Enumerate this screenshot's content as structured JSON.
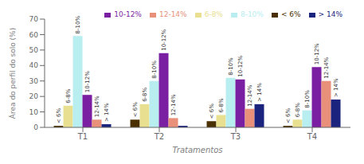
{
  "chart_data": {
    "type": "bar",
    "title": "",
    "xlabel": "Tratamentos",
    "ylabel": "Área do perfil do solo (%)",
    "categories": [
      "T1",
      "T2",
      "T3",
      "T4"
    ],
    "series": [
      {
        "name": "< 6%",
        "color": "#4a3000",
        "values": [
          1,
          5,
          4,
          1
        ]
      },
      {
        "name": "6-8%",
        "color": "#e8e090",
        "values": [
          14,
          15,
          8,
          5
        ]
      },
      {
        "name": "8-10%",
        "color": "#b8eef0",
        "values": [
          59,
          30,
          32,
          11
        ]
      },
      {
        "name": "10-12%",
        "color": "#7b1fa2",
        "values": [
          21,
          48,
          31,
          39
        ]
      },
      {
        "name": "12-14%",
        "color": "#e8907a",
        "values": [
          5,
          6,
          12,
          30
        ]
      },
      {
        "name": "> 14%",
        "color": "#1a237e",
        "values": [
          2,
          1,
          15,
          18
        ]
      }
    ],
    "ylim": [
      0,
      70
    ],
    "yticks": [
      0,
      10,
      20,
      30,
      40,
      50,
      60,
      70
    ],
    "grid": false,
    "legend": "upper right",
    "annotations": [
      {
        "category": "T1",
        "series": "< 6%",
        "text": "< 6%"
      },
      {
        "category": "T1",
        "series": "6-8%",
        "text": "6-8%"
      },
      {
        "category": "T1",
        "series": "8-10%",
        "text": "8-10%"
      },
      {
        "category": "T1",
        "series": "10-12%",
        "text": "10-12%"
      },
      {
        "category": "T1",
        "series": "12-14%",
        "text": "12-14%"
      },
      {
        "category": "T1",
        "series": "> 14%",
        "text": "> 14%"
      },
      {
        "category": "T2",
        "series": "< 6%",
        "text": "< 6%"
      },
      {
        "category": "T2",
        "series": "6-8%",
        "text": "6-8%"
      },
      {
        "category": "T2",
        "series": "8-10%",
        "text": "8-10%"
      },
      {
        "category": "T2",
        "series": "10-12%",
        "text": "10-12%"
      },
      {
        "category": "T2",
        "series": "12-14%",
        "text": "12-14%"
      },
      {
        "category": "T3",
        "series": "< 6%",
        "text": "< 6%"
      },
      {
        "category": "T3",
        "series": "6-8%",
        "text": "6-8%"
      },
      {
        "category": "T3",
        "series": "8-10%",
        "text": "8-10%"
      },
      {
        "category": "T3",
        "series": "10-12%",
        "text": "10-12%"
      },
      {
        "category": "T3",
        "series": "12-14%",
        "text": "12-14%"
      },
      {
        "category": "T3",
        "series": "> 14%",
        "text": "> 14%"
      },
      {
        "category": "T4",
        "series": "< 6%",
        "text": "< 6%"
      },
      {
        "category": "T4",
        "series": "6-8%",
        "text": "6-8%"
      },
      {
        "category": "T4",
        "series": "8-10%",
        "text": "8-10%"
      },
      {
        "category": "T4",
        "series": "10-12%",
        "text": "10-12%"
      },
      {
        "category": "T4",
        "series": "12-14%",
        "text": "12-14%"
      },
      {
        "category": "T4",
        "series": "> 14%",
        "text": "> 14%"
      }
    ]
  }
}
